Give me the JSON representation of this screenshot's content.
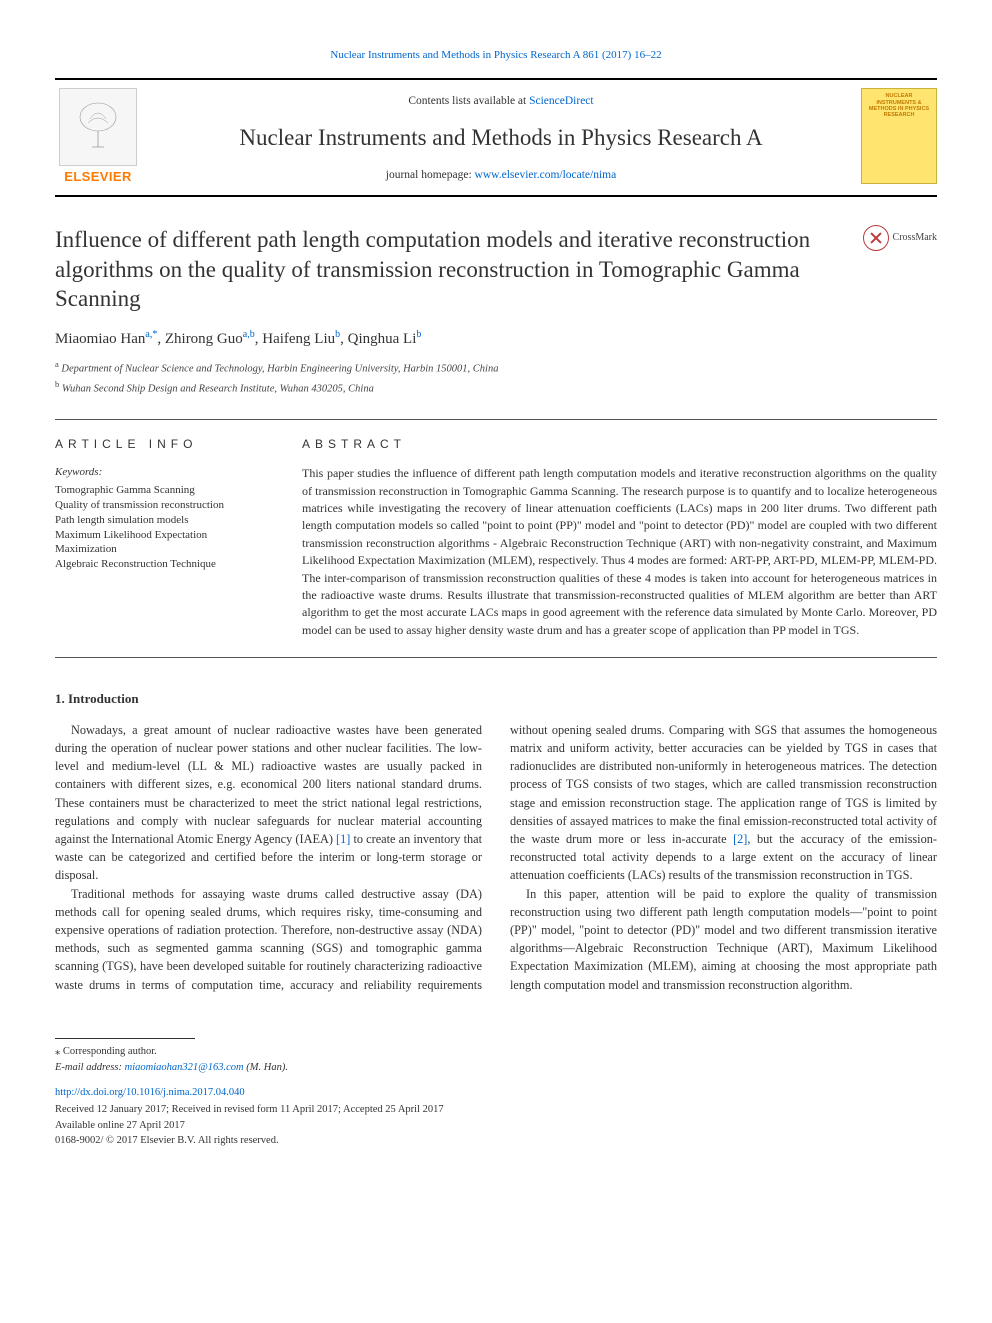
{
  "citation_link": "Nuclear Instruments and Methods in Physics Research A 861 (2017) 16–22",
  "header": {
    "contents_prefix": "Contents lists available at ",
    "contents_link": "ScienceDirect",
    "journal_title": "Nuclear Instruments and Methods in Physics Research A",
    "homepage_prefix": "journal homepage: ",
    "homepage_url": "www.elsevier.com/locate/nima",
    "elsevier_label": "ELSEVIER",
    "cover_text": "NUCLEAR INSTRUMENTS & METHODS IN PHYSICS RESEARCH"
  },
  "crossmark_label": "CrossMark",
  "article": {
    "title": "Influence of different path length computation models and iterative reconstruction algorithms on the quality of transmission reconstruction in Tomographic Gamma Scanning",
    "authors_html": "Miaomiao Han<sup>a,*</sup>, Zhirong Guo<sup>a,b</sup>, Haifeng Liu<sup>b</sup>, Qinghua Li<sup>b</sup>",
    "affiliations": [
      {
        "mark": "a",
        "text": "Department of Nuclear Science and Technology, Harbin Engineering University, Harbin 150001, China"
      },
      {
        "mark": "b",
        "text": "Wuhan Second Ship Design and Research Institute, Wuhan 430205, China"
      }
    ]
  },
  "article_info_label": "ARTICLE INFO",
  "abstract_label": "ABSTRACT",
  "keywords_label": "Keywords:",
  "keywords": [
    "Tomographic Gamma Scanning",
    "Quality of transmission reconstruction",
    "Path length simulation models",
    "Maximum Likelihood Expectation",
    "Maximization",
    "Algebraic Reconstruction Technique"
  ],
  "abstract_text": "This paper studies the influence of different path length computation models and iterative reconstruction algorithms on the quality of transmission reconstruction in Tomographic Gamma Scanning. The research purpose is to quantify and to localize heterogeneous matrices while investigating the recovery of linear attenuation coefficients (LACs) maps in 200 liter drums. Two different path length computation models so called \"point to point (PP)\" model and \"point to detector (PD)\" model are coupled with two different transmission reconstruction algorithms - Algebraic Reconstruction Technique (ART) with non-negativity constraint, and Maximum Likelihood Expectation Maximization (MLEM), respectively. Thus 4 modes are formed: ART-PP, ART-PD, MLEM-PP, MLEM-PD. The inter-comparison of transmission reconstruction qualities of these 4 modes is taken into account for heterogeneous matrices in the radioactive waste drums. Results illustrate that transmission-reconstructed qualities of MLEM algorithm are better than ART algorithm to get the most accurate LACs maps in good agreement with the reference data simulated by Monte Carlo. Moreover, PD model can be used to assay higher density waste drum and has a greater scope of application than PP model in TGS.",
  "intro_heading": "1. Introduction",
  "paragraphs": {
    "p1_a": "Nowadays, a great amount of nuclear radioactive wastes have been generated during the operation of nuclear power stations and other nuclear facilities. The low-level and medium-level (LL & ML) radioactive wastes are usually packed in containers with different sizes, e.g. economical 200 liters national standard drums. These containers must be characterized to meet the strict national legal restrictions, regulations and comply with nuclear safeguards for nuclear material accounting against the International Atomic Energy Agency (IAEA) ",
    "p1_ref": "[1]",
    "p1_b": " to create an inventory that waste can be categorized and certified before the interim or long-term storage or disposal.",
    "p2_a": "Traditional methods for assaying waste drums called destructive assay (DA) methods call for opening sealed drums, which requires risky, time-consuming and expensive operations of radiation protection. Therefore, non-destructive assay (NDA) methods, such as segmented gamma scanning (SGS) and tomographic gamma scanning (TGS), have been developed suitable for routinely characterizing radioactive waste drums in terms of computation time, accuracy and reliability requirements without opening sealed drums. Comparing ",
    "p2_b": "with SGS that assumes the homogeneous matrix and uniform activity, better accuracies can be yielded by TGS in cases that radionuclides are distributed non-uniformly in heterogeneous matrices. The detection process of TGS consists of two stages, which are called transmission reconstruction stage and emission reconstruction stage. The application range of TGS is limited by densities of assayed matrices to make the final emission-reconstructed total activity of the waste drum more or less in-accurate ",
    "p2_ref": "[2]",
    "p2_c": ", but the accuracy of the emission-reconstructed total activity depends to a large extent on the accuracy of linear attenuation coefficients (LACs) results of the transmission reconstruction in TGS.",
    "p3": "In this paper, attention will be paid to explore the quality of transmission reconstruction using two different path length computation models—\"point to point (PP)\" model, \"point to detector (PD)\" model and two different transmission iterative algorithms—Algebraic Reconstruction Technique (ART), Maximum Likelihood Expectation Maximization (MLEM), aiming at choosing the most appropriate path length computation model and transmission reconstruction algorithm."
  },
  "footer": {
    "corr": "⁎ Corresponding author.",
    "email_label": "E-mail address: ",
    "email": "miaomiaohan321@163.com",
    "email_who": " (M. Han).",
    "doi": "http://dx.doi.org/10.1016/j.nima.2017.04.040",
    "dates": "Received 12 January 2017; Received in revised form 11 April 2017; Accepted 25 April 2017",
    "online": "Available online 27 April 2017",
    "copyright": "0168-9002/ © 2017 Elsevier B.V. All rights reserved."
  },
  "colors": {
    "link": "#0066cc",
    "elsevier_orange": "#ff7a00",
    "cover_bg": "#ffe570",
    "rule": "#000000"
  }
}
